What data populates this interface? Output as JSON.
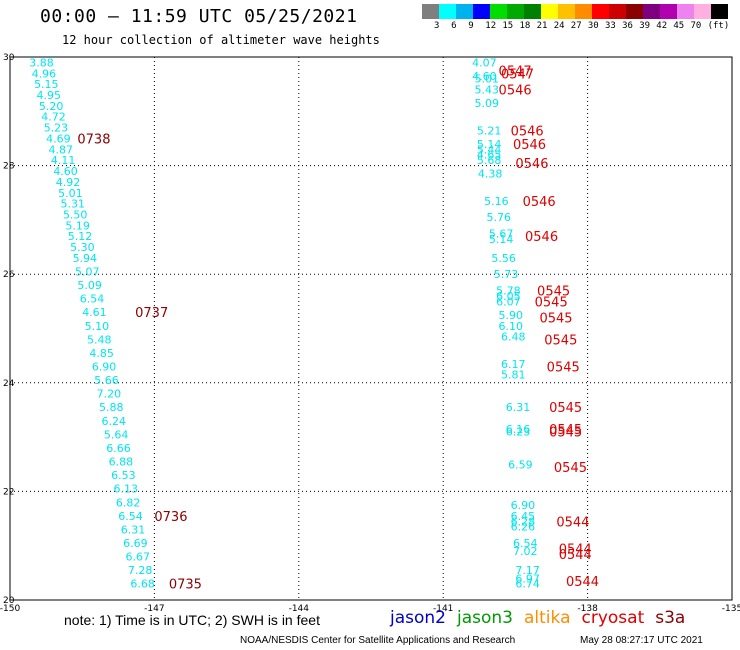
{
  "header": {
    "title": "00:00 – 11:59 UTC 05/25/2021",
    "subtitle": "12 hour collection of altimeter wave heights"
  },
  "colorbar": {
    "colors": [
      "#7f7f7f",
      "#00ffff",
      "#00b2ee",
      "#0000ff",
      "#00dd00",
      "#00aa00",
      "#008000",
      "#ffff00",
      "#ffc000",
      "#ff8c00",
      "#ff0000",
      "#cc0000",
      "#8b0000",
      "#7f007f",
      "#b000b0",
      "#ee82ee",
      "#ffb0e0",
      "#000000"
    ],
    "labels": [
      "3",
      "6",
      "9",
      "12",
      "15",
      "18",
      "21",
      "24",
      "27",
      "30",
      "33",
      "36",
      "39",
      "42",
      "45",
      "70",
      "(ft)"
    ]
  },
  "footer": {
    "note": "note: 1) Time is in UTC; 2) SWH is in feet",
    "source": "NOAA/NESDIS Center for Satellite Applications and Research",
    "timestamp": "May 28 08:27:17 UTC 2021"
  },
  "satellites": [
    {
      "name": "jason2",
      "color": "#0000cc"
    },
    {
      "name": "jason3",
      "color": "#009900"
    },
    {
      "name": "altika",
      "color": "#ff8c00"
    },
    {
      "name": "cryosat",
      "color": "#dd0000"
    },
    {
      "name": "s3a",
      "color": "#8b0000"
    }
  ],
  "chart_data": {
    "type": "scatter",
    "xlim": [
      -150,
      -135
    ],
    "ylim": [
      20,
      30
    ],
    "xticks": [
      "-150",
      "-147",
      "-144",
      "-141",
      "-138",
      "-135"
    ],
    "yticks": [
      "20",
      "22",
      "24",
      "26",
      "28",
      "30"
    ],
    "grid": true,
    "series": [
      {
        "name": "s3a",
        "value_color": "#00e5ee",
        "label_color": "#8b0000",
        "points": [
          {
            "x": -149.6,
            "y": 29.9,
            "v": "3.88"
          },
          {
            "x": -149.55,
            "y": 29.7,
            "v": "4.96"
          },
          {
            "x": -149.5,
            "y": 29.5,
            "v": "5.15"
          },
          {
            "x": -149.45,
            "y": 29.3,
            "v": "4.95"
          },
          {
            "x": -149.4,
            "y": 29.1,
            "v": "5.20"
          },
          {
            "x": -149.35,
            "y": 28.9,
            "v": "4.72"
          },
          {
            "x": -149.3,
            "y": 28.7,
            "v": "5.23"
          },
          {
            "x": -149.25,
            "y": 28.5,
            "v": "4.69"
          },
          {
            "x": -149.2,
            "y": 28.3,
            "v": "4.87"
          },
          {
            "x": -149.15,
            "y": 28.1,
            "v": "4.11"
          },
          {
            "x": -149.1,
            "y": 27.9,
            "v": "4.60"
          },
          {
            "x": -149.05,
            "y": 27.7,
            "v": "4.92"
          },
          {
            "x": -149.0,
            "y": 27.5,
            "v": "5.01"
          },
          {
            "x": -148.95,
            "y": 27.3,
            "v": "5.31"
          },
          {
            "x": -148.9,
            "y": 27.1,
            "v": "5.50"
          },
          {
            "x": -148.85,
            "y": 26.9,
            "v": "5.19"
          },
          {
            "x": -148.8,
            "y": 26.7,
            "v": "5.12"
          },
          {
            "x": -148.75,
            "y": 26.5,
            "v": "5.30"
          },
          {
            "x": -148.7,
            "y": 26.3,
            "v": "5.94"
          },
          {
            "x": -148.65,
            "y": 26.05,
            "v": "5.07"
          },
          {
            "x": -148.6,
            "y": 25.8,
            "v": "5.09"
          },
          {
            "x": -148.55,
            "y": 25.55,
            "v": "6.54"
          },
          {
            "x": -148.5,
            "y": 25.3,
            "v": "4.61"
          },
          {
            "x": -148.45,
            "y": 25.05,
            "v": "5.10"
          },
          {
            "x": -148.4,
            "y": 24.8,
            "v": "5.48"
          },
          {
            "x": -148.35,
            "y": 24.55,
            "v": "4.85"
          },
          {
            "x": -148.3,
            "y": 24.3,
            "v": "6.90"
          },
          {
            "x": -148.25,
            "y": 24.05,
            "v": "5.66"
          },
          {
            "x": -148.2,
            "y": 23.8,
            "v": "7.20"
          },
          {
            "x": -148.15,
            "y": 23.55,
            "v": "5.88"
          },
          {
            "x": -148.1,
            "y": 23.3,
            "v": "6.24"
          },
          {
            "x": -148.05,
            "y": 23.05,
            "v": "5.64"
          },
          {
            "x": -148.0,
            "y": 22.8,
            "v": "6.66"
          },
          {
            "x": -147.95,
            "y": 22.55,
            "v": "6.88"
          },
          {
            "x": -147.9,
            "y": 22.3,
            "v": "6.53"
          },
          {
            "x": -147.85,
            "y": 22.05,
            "v": "6.13"
          },
          {
            "x": -147.8,
            "y": 21.8,
            "v": "6.82"
          },
          {
            "x": -147.75,
            "y": 21.55,
            "v": "6.54"
          },
          {
            "x": -147.7,
            "y": 21.3,
            "v": "6.31"
          },
          {
            "x": -147.65,
            "y": 21.05,
            "v": "6.69"
          },
          {
            "x": -147.6,
            "y": 20.8,
            "v": "6.67"
          },
          {
            "x": -147.55,
            "y": 20.55,
            "v": "7.28"
          },
          {
            "x": -147.5,
            "y": 20.3,
            "v": "6.68"
          }
        ],
        "time_labels": [
          {
            "x": -148.6,
            "y": 28.5,
            "t": "0738"
          },
          {
            "x": -147.4,
            "y": 25.3,
            "t": "0737"
          },
          {
            "x": -147.0,
            "y": 21.55,
            "t": "0736"
          },
          {
            "x": -146.7,
            "y": 20.3,
            "t": "0735"
          }
        ]
      },
      {
        "name": "cryosat",
        "value_color": "#00e5ee",
        "label_color": "#dd0000",
        "points": [
          {
            "x": -140.4,
            "y": 29.9,
            "v": "4.07"
          },
          {
            "x": -140.4,
            "y": 29.65,
            "v": "4.60"
          },
          {
            "x": -140.35,
            "y": 29.6,
            "v": "5.01"
          },
          {
            "x": -140.35,
            "y": 29.4,
            "v": "5.43"
          },
          {
            "x": -140.35,
            "y": 29.15,
            "v": "5.09"
          },
          {
            "x": -140.3,
            "y": 28.65,
            "v": "5.21"
          },
          {
            "x": -140.3,
            "y": 28.4,
            "v": "5.14"
          },
          {
            "x": -140.3,
            "y": 28.3,
            "v": "5.44"
          },
          {
            "x": -140.3,
            "y": 28.2,
            "v": "4.65"
          },
          {
            "x": -140.3,
            "y": 28.1,
            "v": "5.68"
          },
          {
            "x": -140.28,
            "y": 27.85,
            "v": "4.38"
          },
          {
            "x": -140.15,
            "y": 27.35,
            "v": "5.16"
          },
          {
            "x": -140.1,
            "y": 27.05,
            "v": "5.76"
          },
          {
            "x": -140.05,
            "y": 26.75,
            "v": "5.67"
          },
          {
            "x": -140.05,
            "y": 26.65,
            "v": "5.14"
          },
          {
            "x": -140.0,
            "y": 26.3,
            "v": "5.56"
          },
          {
            "x": -139.95,
            "y": 26.0,
            "v": "5.73"
          },
          {
            "x": -139.9,
            "y": 25.7,
            "v": "5.78"
          },
          {
            "x": -139.9,
            "y": 25.6,
            "v": "6.05"
          },
          {
            "x": -139.9,
            "y": 25.5,
            "v": "6.07"
          },
          {
            "x": -139.85,
            "y": 25.25,
            "v": "5.90"
          },
          {
            "x": -139.85,
            "y": 25.05,
            "v": "6.10"
          },
          {
            "x": -139.8,
            "y": 24.85,
            "v": "6.48"
          },
          {
            "x": -139.8,
            "y": 24.35,
            "v": "6.17"
          },
          {
            "x": -139.8,
            "y": 24.15,
            "v": "5.81"
          },
          {
            "x": -139.7,
            "y": 23.55,
            "v": "6.31"
          },
          {
            "x": -139.7,
            "y": 23.15,
            "v": "6.16"
          },
          {
            "x": -139.7,
            "y": 23.1,
            "v": "6.23"
          },
          {
            "x": -139.65,
            "y": 22.5,
            "v": "6.59"
          },
          {
            "x": -139.6,
            "y": 21.75,
            "v": "6.90"
          },
          {
            "x": -139.6,
            "y": 21.55,
            "v": "6.45"
          },
          {
            "x": -139.6,
            "y": 21.45,
            "v": "6.28"
          },
          {
            "x": -139.6,
            "y": 21.35,
            "v": "6.26"
          },
          {
            "x": -139.55,
            "y": 21.05,
            "v": "6.54"
          },
          {
            "x": -139.55,
            "y": 20.9,
            "v": "7.02"
          },
          {
            "x": -139.5,
            "y": 20.55,
            "v": "7.17"
          },
          {
            "x": -139.5,
            "y": 20.4,
            "v": "6.97"
          },
          {
            "x": -139.5,
            "y": 20.3,
            "v": "6.74"
          }
        ],
        "time_labels": [
          {
            "x": -139.85,
            "y": 29.75,
            "t": "0547"
          },
          {
            "x": -139.8,
            "y": 29.7,
            "t": "0547"
          },
          {
            "x": -139.85,
            "y": 29.4,
            "t": "0546"
          },
          {
            "x": -139.6,
            "y": 28.65,
            "t": "0546"
          },
          {
            "x": -139.55,
            "y": 28.4,
            "t": "0546"
          },
          {
            "x": -139.5,
            "y": 28.05,
            "t": "0546"
          },
          {
            "x": -139.35,
            "y": 27.35,
            "t": "0546"
          },
          {
            "x": -139.3,
            "y": 26.7,
            "t": "0546"
          },
          {
            "x": -139.05,
            "y": 25.7,
            "t": "0545"
          },
          {
            "x": -139.1,
            "y": 25.5,
            "t": "0545"
          },
          {
            "x": -139.0,
            "y": 25.2,
            "t": "0545"
          },
          {
            "x": -138.9,
            "y": 24.8,
            "t": "0545"
          },
          {
            "x": -138.85,
            "y": 24.3,
            "t": "0545"
          },
          {
            "x": -138.8,
            "y": 23.55,
            "t": "0545"
          },
          {
            "x": -138.8,
            "y": 23.15,
            "t": "0545"
          },
          {
            "x": -138.8,
            "y": 23.1,
            "t": "0545"
          },
          {
            "x": -138.7,
            "y": 22.45,
            "t": "0545"
          },
          {
            "x": -138.65,
            "y": 21.45,
            "t": "0544"
          },
          {
            "x": -138.6,
            "y": 20.95,
            "t": "0544"
          },
          {
            "x": -138.6,
            "y": 20.85,
            "t": "0544"
          },
          {
            "x": -138.45,
            "y": 20.35,
            "t": "0544"
          }
        ]
      }
    ]
  }
}
